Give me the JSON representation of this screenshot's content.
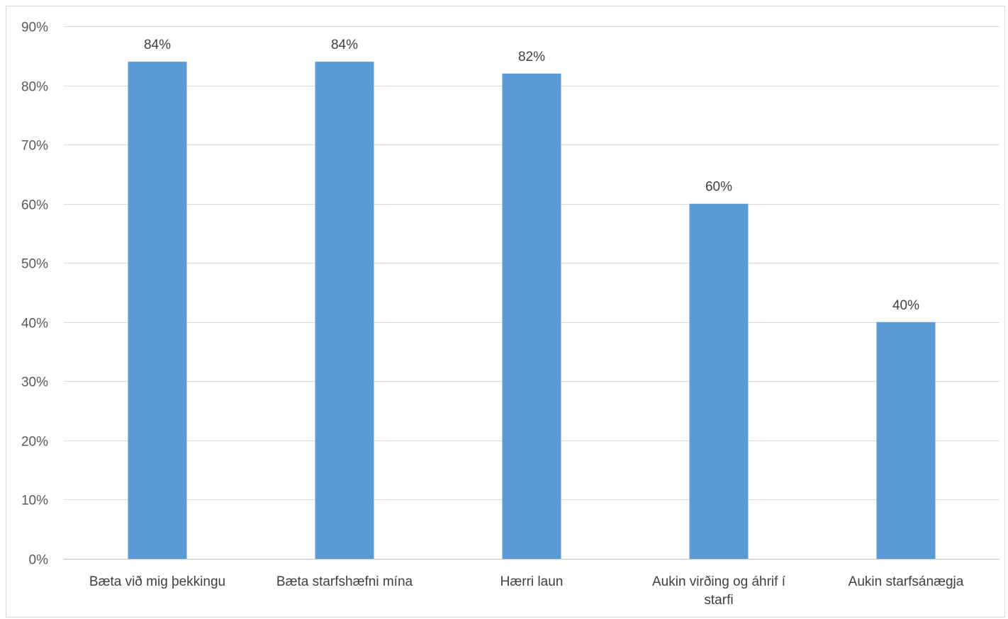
{
  "chart_data": {
    "type": "bar",
    "categories": [
      [
        "Bæta við mig þekkingu"
      ],
      [
        "Bæta starfshæfni mína"
      ],
      [
        "Hærri laun"
      ],
      [
        "Aukin virðing og áhrif í",
        "starfi"
      ],
      [
        "Aukin starfsánægja"
      ]
    ],
    "values": [
      84,
      84,
      82,
      60,
      40
    ],
    "data_labels": [
      "84%",
      "84%",
      "82%",
      "60%",
      "40%"
    ],
    "ylim": [
      0,
      90
    ],
    "y_ticks": [
      0,
      10,
      20,
      30,
      40,
      50,
      60,
      70,
      80,
      90
    ],
    "y_tick_labels": [
      "0%",
      "10%",
      "20%",
      "30%",
      "40%",
      "50%",
      "60%",
      "70%",
      "80%",
      "90%"
    ],
    "title": "",
    "xlabel": "",
    "ylabel": "",
    "grid": true,
    "colors": {
      "bar": "#5b9bd5",
      "grid": "#d9d9d9",
      "axis": "#bfbfbf"
    }
  }
}
